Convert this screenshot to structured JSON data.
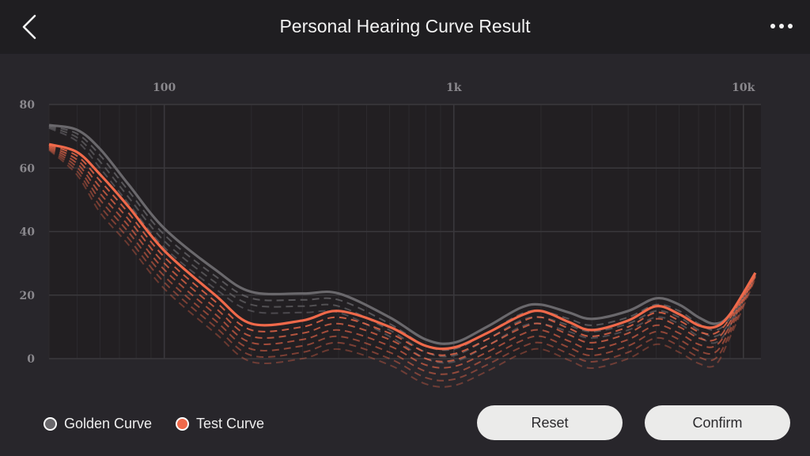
{
  "header": {
    "title": "Personal Hearing Curve Result",
    "back_icon": "chevron-left-icon",
    "more_icon": "more-horizontal-icon"
  },
  "legend": {
    "golden_label": "Golden Curve",
    "test_label": "Test Curve"
  },
  "buttons": {
    "reset_label": "Reset",
    "confirm_label": "Confirm"
  },
  "colors": {
    "golden": "#6a686c",
    "test": "#f0694a",
    "grid": "#3a383c",
    "plot_bg": "#221f22"
  },
  "chart_data": {
    "type": "line",
    "x_scale": "log",
    "xlim": [
      40,
      11500
    ],
    "ylim": [
      0,
      80
    ],
    "x_ticks": [
      {
        "value": 100,
        "label": "100"
      },
      {
        "value": 1000,
        "label": "1k"
      },
      {
        "value": 10000,
        "label": "10k"
      }
    ],
    "y_ticks": [
      {
        "value": 0,
        "label": "0"
      },
      {
        "value": 20,
        "label": "20"
      },
      {
        "value": 40,
        "label": "40"
      },
      {
        "value": 60,
        "label": "60"
      },
      {
        "value": 80,
        "label": "80"
      }
    ],
    "grid": true,
    "series": [
      {
        "name": "Golden Curve",
        "style": "solid",
        "x": [
          40,
          50,
          60,
          75,
          100,
          150,
          200,
          300,
          400,
          600,
          800,
          1000,
          1300,
          1700,
          2000,
          2500,
          3000,
          4000,
          5000,
          6000,
          7000,
          8000,
          9000,
          11000
        ],
        "y": [
          73.5,
          72,
          66,
          55,
          41,
          28,
          21,
          20.5,
          20.5,
          13,
          6,
          5,
          10,
          16,
          17,
          14.5,
          12.5,
          15,
          19,
          17,
          13,
          11,
          14,
          27
        ]
      },
      {
        "name": "Test Curve",
        "style": "solid",
        "x": [
          40,
          50,
          60,
          75,
          100,
          150,
          200,
          300,
          400,
          600,
          800,
          1000,
          1300,
          1700,
          2000,
          2500,
          3000,
          4000,
          5000,
          6000,
          7000,
          8000,
          9000,
          11000
        ],
        "y": [
          67.5,
          65,
          58,
          48,
          34,
          20,
          11,
          12,
          15,
          10,
          4,
          3.5,
          8,
          13.5,
          15,
          11.5,
          9,
          12,
          16.5,
          14,
          10.5,
          10,
          14,
          27
        ]
      }
    ],
    "intermediate_offsets": [
      {
        "color": "golden",
        "shift": -2
      },
      {
        "color": "golden",
        "shift": -4
      },
      {
        "color": "golden",
        "shift": -6
      },
      {
        "color": "test",
        "shift": -2
      },
      {
        "color": "test",
        "shift": -4
      },
      {
        "color": "test",
        "shift": -6
      },
      {
        "color": "test",
        "shift": -8
      },
      {
        "color": "test",
        "shift": -10
      },
      {
        "color": "test",
        "shift": -12
      }
    ]
  }
}
